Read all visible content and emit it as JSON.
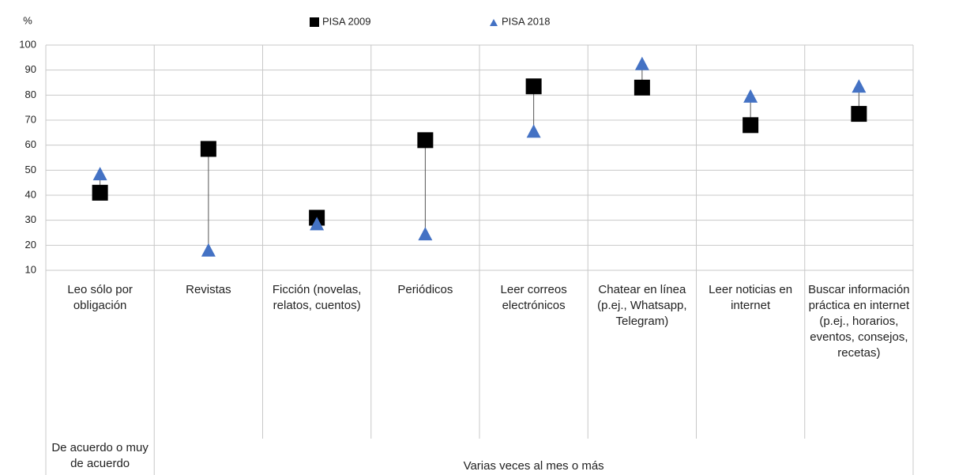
{
  "chart_data": {
    "type": "dot",
    "y_label": "%",
    "categories": [
      "Leo sólo por obligación",
      "Revistas",
      "Ficción (novelas, relatos, cuentos)",
      "Periódicos",
      "Leer correos electrónicos",
      "Chatear en línea (p.ej., Whatsapp, Telegram)",
      "Leer noticias en internet",
      "Buscar información práctica en internet (p.ej., horarios, eventos, consejos, recetas)"
    ],
    "groups": [
      {
        "label": "De acuerdo o muy de acuerdo",
        "span": 1
      },
      {
        "label": "Varias veces al mes o más",
        "span": 7
      }
    ],
    "series": [
      {
        "name": "PISA 2009",
        "color": "#000000",
        "marker": "square",
        "values": [
          41,
          58.5,
          31,
          62,
          83.5,
          83,
          68,
          72.5
        ]
      },
      {
        "name": "PISA 2018",
        "color": "#4472c4",
        "marker": "triangle",
        "values": [
          48.5,
          18,
          28.5,
          24.5,
          65.5,
          92.5,
          79.5,
          83.5
        ]
      }
    ],
    "ylim": [
      10,
      100
    ],
    "yticks": [
      10,
      20,
      30,
      40,
      50,
      60,
      70,
      80,
      90,
      100
    ],
    "grid": true
  }
}
